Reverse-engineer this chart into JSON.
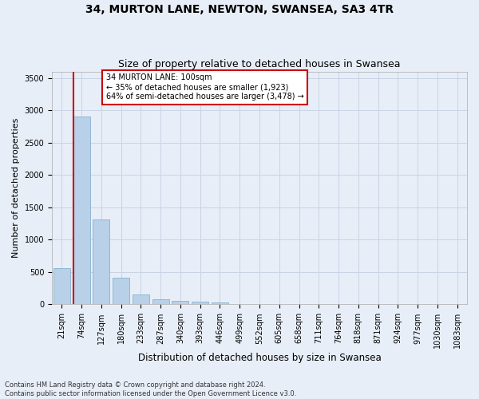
{
  "title": "34, MURTON LANE, NEWTON, SWANSEA, SA3 4TR",
  "subtitle": "Size of property relative to detached houses in Swansea",
  "xlabel": "Distribution of detached houses by size in Swansea",
  "ylabel": "Number of detached properties",
  "categories": [
    "21sqm",
    "74sqm",
    "127sqm",
    "180sqm",
    "233sqm",
    "287sqm",
    "340sqm",
    "393sqm",
    "446sqm",
    "499sqm",
    "552sqm",
    "605sqm",
    "658sqm",
    "711sqm",
    "764sqm",
    "818sqm",
    "871sqm",
    "924sqm",
    "977sqm",
    "1030sqm",
    "1083sqm"
  ],
  "values": [
    560,
    2910,
    1310,
    410,
    155,
    75,
    55,
    45,
    35,
    0,
    0,
    0,
    0,
    0,
    0,
    0,
    0,
    0,
    0,
    0,
    0
  ],
  "bar_color": "#b8d0e8",
  "bar_edge_color": "#7aaac8",
  "annotation_text": "34 MURTON LANE: 100sqm\n← 35% of detached houses are smaller (1,923)\n64% of semi-detached houses are larger (3,478) →",
  "annotation_box_color": "#ffffff",
  "annotation_box_edge_color": "#cc0000",
  "vline_color": "#cc0000",
  "grid_color": "#c8d4e4",
  "background_color": "#e8eef8",
  "ylim": [
    0,
    3600
  ],
  "yticks": [
    0,
    500,
    1000,
    1500,
    2000,
    2500,
    3000,
    3500
  ],
  "footer_text": "Contains HM Land Registry data © Crown copyright and database right 2024.\nContains public sector information licensed under the Open Government Licence v3.0.",
  "title_fontsize": 10,
  "subtitle_fontsize": 9,
  "axis_label_fontsize": 8,
  "tick_fontsize": 7,
  "annotation_fontsize": 7,
  "footer_fontsize": 6
}
